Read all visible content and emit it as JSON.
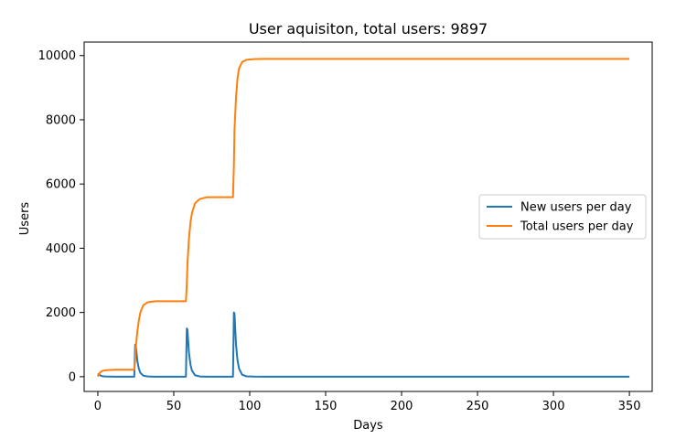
{
  "chart_data": {
    "type": "line",
    "title": "User aquisiton, total users: 9897",
    "xlabel": "Days",
    "ylabel": "Users",
    "xlim": [
      -9,
      365
    ],
    "ylim": [
      -460,
      10420
    ],
    "x_ticks": [
      0,
      50,
      100,
      150,
      200,
      250,
      300,
      350
    ],
    "x_tick_labels": [
      "0",
      "50",
      "100",
      "150",
      "200",
      "250",
      "300",
      "350"
    ],
    "y_ticks": [
      0,
      2000,
      4000,
      6000,
      8000,
      10000
    ],
    "y_tick_labels": [
      "0",
      "2000",
      "4000",
      "6000",
      "8000",
      "10000"
    ],
    "grid": false,
    "legend_position": "center-right",
    "series": [
      {
        "name": "New users per day",
        "color": "#1f77b4",
        "x": [
          0,
          1,
          2,
          3,
          5,
          8,
          12,
          24,
          24.6,
          25,
          26,
          27,
          28,
          30,
          33,
          38,
          58,
          58.6,
          59,
          60,
          61,
          62,
          64,
          67,
          72,
          89,
          89.6,
          90,
          91,
          92,
          93,
          95,
          98,
          103,
          110,
          350
        ],
        "y": [
          100,
          60,
          30,
          15,
          5,
          1,
          0,
          0,
          1000,
          980,
          500,
          250,
          120,
          30,
          5,
          0,
          0,
          1500,
          1470,
          750,
          375,
          185,
          45,
          8,
          0,
          0,
          2000,
          1960,
          1000,
          500,
          250,
          60,
          10,
          1,
          0,
          0
        ]
      },
      {
        "name": "Total users per day",
        "color": "#ff7f0e",
        "x": [
          0,
          1,
          2,
          3,
          5,
          8,
          12,
          24,
          24.6,
          25,
          26,
          27,
          28,
          30,
          33,
          38,
          58,
          58.6,
          59,
          60,
          61,
          62,
          64,
          67,
          72,
          89,
          89.6,
          90,
          91,
          92,
          93,
          95,
          98,
          103,
          110,
          350
        ],
        "y": [
          0,
          100,
          150,
          180,
          200,
          210,
          215,
          215,
          500,
          900,
          1400,
          1750,
          2000,
          2230,
          2320,
          2350,
          2350,
          2900,
          3500,
          4300,
          4800,
          5100,
          5400,
          5530,
          5590,
          5590,
          6600,
          7700,
          8700,
          9300,
          9600,
          9800,
          9870,
          9890,
          9897,
          9897
        ]
      }
    ]
  }
}
